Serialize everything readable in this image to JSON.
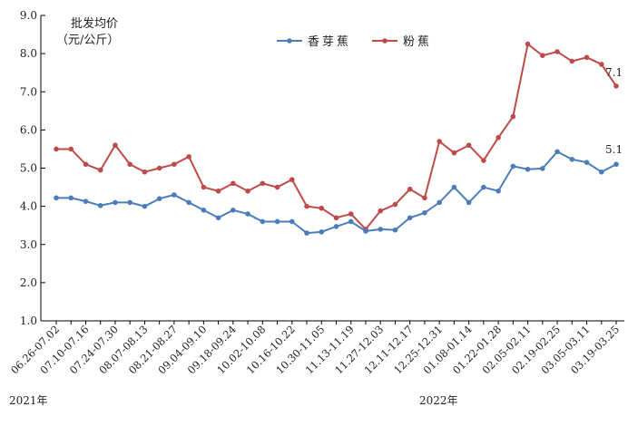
{
  "chart_data": {
    "type": "line",
    "ylabel_line1": "批发均价",
    "ylabel_line2": "（元/公斤）",
    "ylim": [
      1.0,
      9.0
    ],
    "y_ticks": [
      "1.0",
      "2.0",
      "3.0",
      "4.0",
      "5.0",
      "6.0",
      "7.0",
      "8.0",
      "9.0"
    ],
    "x_tick_labels": [
      "06.26-07.02",
      "07.10-07.16",
      "07.24-07.30",
      "08.07-08.13",
      "08.21-08.27",
      "09.04-09.10",
      "09.18-09.24",
      "10.02-10.08",
      "10.16-10.22",
      "10.30-11.05",
      "11.13-11.19",
      "11.27-12.03",
      "12.11-12.17",
      "12.25-12.31",
      "01.08-01.14",
      "01.22-01.28",
      "02.05-02.11",
      "02.19-02.25",
      "03.05-03.11",
      "03.19-03.25"
    ],
    "year_labels": [
      "2021年",
      "2022年"
    ],
    "series": [
      {
        "name": "香芽蕉",
        "color": "#4a7ebb",
        "end_label": "5.1",
        "values": [
          4.22,
          4.22,
          4.13,
          4.02,
          4.1,
          4.1,
          4.0,
          4.2,
          4.3,
          4.1,
          3.9,
          3.7,
          3.9,
          3.8,
          3.6,
          3.6,
          3.6,
          3.3,
          3.33,
          3.47,
          3.6,
          3.35,
          3.4,
          3.38,
          3.7,
          3.83,
          4.1,
          4.5,
          4.1,
          4.5,
          4.4,
          5.05,
          4.97,
          4.99,
          5.43,
          5.23,
          5.15,
          4.9,
          5.1
        ]
      },
      {
        "name": "粉蕉",
        "color": "#be4b48",
        "end_label": "7.1",
        "values": [
          5.5,
          5.5,
          5.1,
          4.95,
          5.6,
          5.1,
          4.9,
          5.0,
          5.1,
          5.3,
          4.5,
          4.4,
          4.6,
          4.4,
          4.6,
          4.5,
          4.7,
          4.0,
          3.95,
          3.7,
          3.8,
          3.4,
          3.88,
          4.05,
          4.45,
          4.22,
          5.7,
          5.4,
          5.6,
          5.2,
          5.8,
          6.35,
          8.25,
          7.95,
          8.05,
          7.8,
          7.9,
          7.72,
          7.15
        ]
      }
    ],
    "legend_position": "top-center",
    "grid": false
  }
}
